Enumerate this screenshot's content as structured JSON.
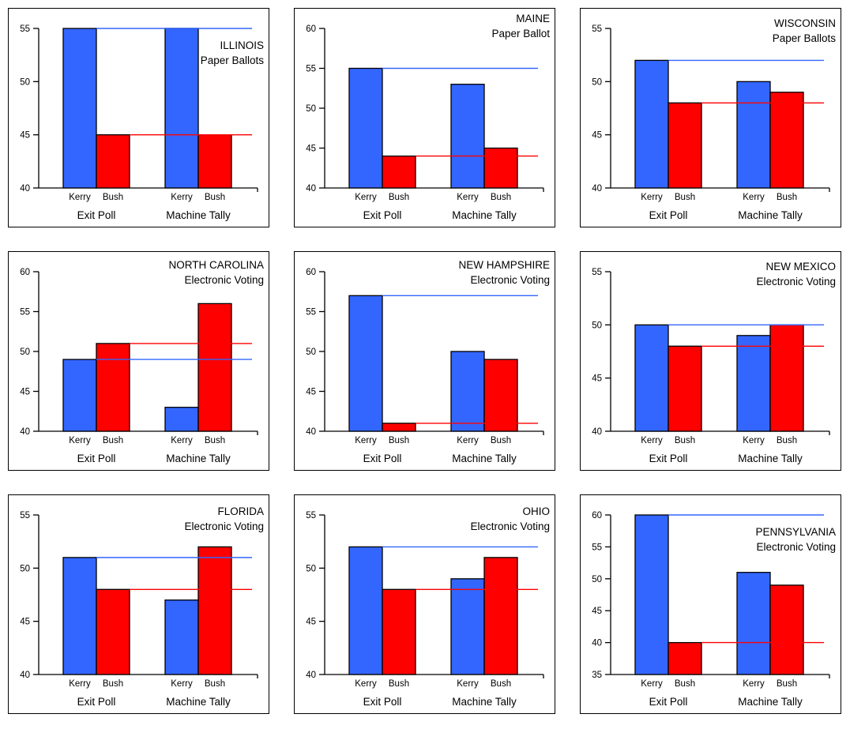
{
  "page": {
    "background": "#ffffff",
    "description": "3x3 grid of bar charts comparing 2004 exit poll results vs machine tally by state"
  },
  "colors": {
    "kerry_bar": "#3366FF",
    "bush_bar": "#FF0000",
    "kerry_ref_line": "#3366FF",
    "bush_ref_line": "#FF0000",
    "axis": "#000000",
    "bar_outline": "#000000"
  },
  "shared": {
    "categories": [
      "Exit Poll",
      "Machine Tally"
    ],
    "series_names": [
      "Kerry",
      "Bush"
    ],
    "legend": "none",
    "grid": "off"
  },
  "chart_data": [
    {
      "type": "bar",
      "title": "ILLINOIS",
      "subtitle": "Paper Ballots",
      "ylim": [
        40,
        55
      ],
      "yticks": [
        40,
        45,
        50,
        55
      ],
      "categories": [
        "Exit Poll",
        "Machine Tally"
      ],
      "series": [
        {
          "name": "Kerry",
          "values": [
            55,
            55
          ]
        },
        {
          "name": "Bush",
          "values": [
            45,
            45
          ]
        }
      ],
      "ref_lines": [
        {
          "series": "Kerry",
          "value": 55
        },
        {
          "series": "Bush",
          "value": 45
        }
      ],
      "title_dy": 38
    },
    {
      "type": "bar",
      "title": "MAINE",
      "subtitle": "Paper Ballot",
      "ylim": [
        40,
        60
      ],
      "yticks": [
        40,
        45,
        50,
        55,
        60
      ],
      "categories": [
        "Exit Poll",
        "Machine Tally"
      ],
      "series": [
        {
          "name": "Kerry",
          "values": [
            55,
            53
          ]
        },
        {
          "name": "Bush",
          "values": [
            44,
            45
          ]
        }
      ],
      "ref_lines": [
        {
          "series": "Kerry",
          "value": 55
        },
        {
          "series": "Bush",
          "value": 44
        }
      ],
      "title_dy": 4
    },
    {
      "type": "bar",
      "title": "WISCONSIN",
      "subtitle": "Paper Ballots",
      "ylim": [
        40,
        55
      ],
      "yticks": [
        40,
        45,
        50,
        55
      ],
      "categories": [
        "Exit Poll",
        "Machine Tally"
      ],
      "series": [
        {
          "name": "Kerry",
          "values": [
            52,
            50
          ]
        },
        {
          "name": "Bush",
          "values": [
            48,
            49
          ]
        }
      ],
      "ref_lines": [
        {
          "series": "Kerry",
          "value": 52
        },
        {
          "series": "Bush",
          "value": 48
        }
      ],
      "title_dy": 10
    },
    {
      "type": "bar",
      "title": "NORTH CAROLINA",
      "subtitle": "Electronic Voting",
      "ylim": [
        40,
        60
      ],
      "yticks": [
        40,
        45,
        50,
        55,
        60
      ],
      "categories": [
        "Exit Poll",
        "Machine Tally"
      ],
      "series": [
        {
          "name": "Kerry",
          "values": [
            49,
            43
          ]
        },
        {
          "name": "Bush",
          "values": [
            51,
            56
          ]
        }
      ],
      "ref_lines": [
        {
          "series": "Kerry",
          "value": 49
        },
        {
          "series": "Bush",
          "value": 51
        }
      ],
      "title_dy": 8
    },
    {
      "type": "bar",
      "title": "NEW HAMPSHIRE",
      "subtitle": "Electronic Voting",
      "ylim": [
        40,
        60
      ],
      "yticks": [
        40,
        45,
        50,
        55,
        60
      ],
      "categories": [
        "Exit Poll",
        "Machine Tally"
      ],
      "series": [
        {
          "name": "Kerry",
          "values": [
            57,
            50
          ]
        },
        {
          "name": "Bush",
          "values": [
            41,
            49
          ]
        }
      ],
      "ref_lines": [
        {
          "series": "Kerry",
          "value": 57
        },
        {
          "series": "Bush",
          "value": 41
        }
      ],
      "title_dy": 8
    },
    {
      "type": "bar",
      "title": "NEW MEXICO",
      "subtitle": "Electronic Voting",
      "ylim": [
        40,
        55
      ],
      "yticks": [
        40,
        45,
        50,
        55
      ],
      "categories": [
        "Exit Poll",
        "Machine Tally"
      ],
      "series": [
        {
          "name": "Kerry",
          "values": [
            50,
            49
          ]
        },
        {
          "name": "Bush",
          "values": [
            48,
            50
          ]
        }
      ],
      "ref_lines": [
        {
          "series": "Kerry",
          "value": 50
        },
        {
          "series": "Bush",
          "value": 48
        }
      ],
      "title_dy": 10
    },
    {
      "type": "bar",
      "title": "FLORIDA",
      "subtitle": "Electronic Voting",
      "ylim": [
        40,
        55
      ],
      "yticks": [
        40,
        45,
        50,
        55
      ],
      "categories": [
        "Exit Poll",
        "Machine Tally"
      ],
      "series": [
        {
          "name": "Kerry",
          "values": [
            51,
            47
          ]
        },
        {
          "name": "Bush",
          "values": [
            48,
            52
          ]
        }
      ],
      "ref_lines": [
        {
          "series": "Kerry",
          "value": 51
        },
        {
          "series": "Bush",
          "value": 48
        }
      ],
      "title_dy": 12
    },
    {
      "type": "bar",
      "title": "OHIO",
      "subtitle": "Electronic Voting",
      "ylim": [
        40,
        55
      ],
      "yticks": [
        40,
        45,
        50,
        55
      ],
      "categories": [
        "Exit Poll",
        "Machine Tally"
      ],
      "series": [
        {
          "name": "Kerry",
          "values": [
            52,
            49
          ]
        },
        {
          "name": "Bush",
          "values": [
            48,
            51
          ]
        }
      ],
      "ref_lines": [
        {
          "series": "Kerry",
          "value": 52
        },
        {
          "series": "Bush",
          "value": 48
        }
      ],
      "title_dy": 38
    },
    {
      "type": "bar",
      "title": "PENNSYLVANIA",
      "subtitle": "Electronic Voting",
      "ylim": [
        35,
        60
      ],
      "yticks": [
        35,
        40,
        45,
        50,
        55,
        60
      ],
      "categories": [
        "Exit Poll",
        "Machine Tally"
      ],
      "series": [
        {
          "name": "Kerry",
          "values": [
            60,
            51
          ]
        },
        {
          "name": "Bush",
          "values": [
            40,
            49
          ]
        }
      ],
      "ref_lines": [
        {
          "series": "Kerry",
          "value": 60
        },
        {
          "series": "Bush",
          "value": 40
        }
      ],
      "title_dy": 38
    }
  ]
}
